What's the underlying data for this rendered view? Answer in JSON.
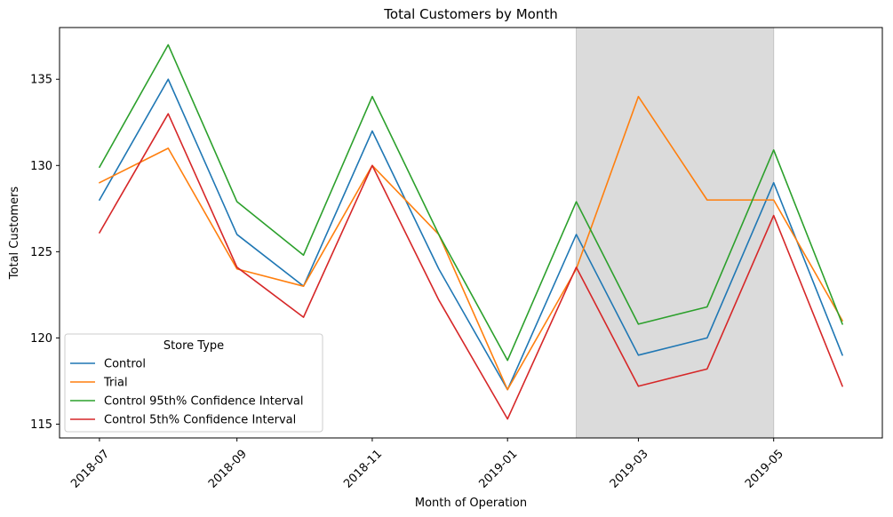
{
  "chart_data": {
    "type": "line",
    "title": "Total Customers by Month",
    "xlabel": "Month of Operation",
    "ylabel": "Total Customers",
    "x": [
      "2018-07",
      "2018-08",
      "2018-09",
      "2018-10",
      "2018-11",
      "2018-12",
      "2019-01",
      "2019-02",
      "2019-03",
      "2019-04",
      "2019-05",
      "2019-06"
    ],
    "x_ticks": [
      "2018-07",
      "2018-09",
      "2018-11",
      "2019-01",
      "2019-03",
      "2019-05"
    ],
    "y_ticks": [
      115,
      120,
      125,
      130,
      135
    ],
    "ylim": [
      114.2,
      138.0
    ],
    "xlim": [
      "2018-06-13",
      "2019-06-19"
    ],
    "highlight_span": [
      "2019-02",
      "2019-05"
    ],
    "highlight_color": "#dbdbdb",
    "grid": false,
    "legend": {
      "title": "Store Type",
      "placement": "lower-left"
    },
    "series": [
      {
        "name": "Control",
        "color": "#1f77b4",
        "values": [
          128,
          135,
          126,
          123,
          132,
          124,
          117,
          126,
          119,
          120,
          129,
          119
        ]
      },
      {
        "name": "Trial",
        "color": "#ff7f0e",
        "values": [
          129,
          131,
          124,
          123,
          130,
          126,
          117,
          124,
          134,
          128,
          128,
          121
        ]
      },
      {
        "name": "Control 95th% Confidence Interval",
        "color": "#2ca02c",
        "values": [
          129.9,
          137.0,
          127.9,
          124.8,
          134.0,
          126.0,
          118.7,
          127.9,
          120.8,
          121.8,
          130.9,
          120.8
        ]
      },
      {
        "name": "Control 5th% Confidence Interval",
        "color": "#d62728",
        "values": [
          126.1,
          133.0,
          124.1,
          121.2,
          130.0,
          122.2,
          115.3,
          124.1,
          117.2,
          118.2,
          127.1,
          117.2
        ]
      }
    ]
  }
}
